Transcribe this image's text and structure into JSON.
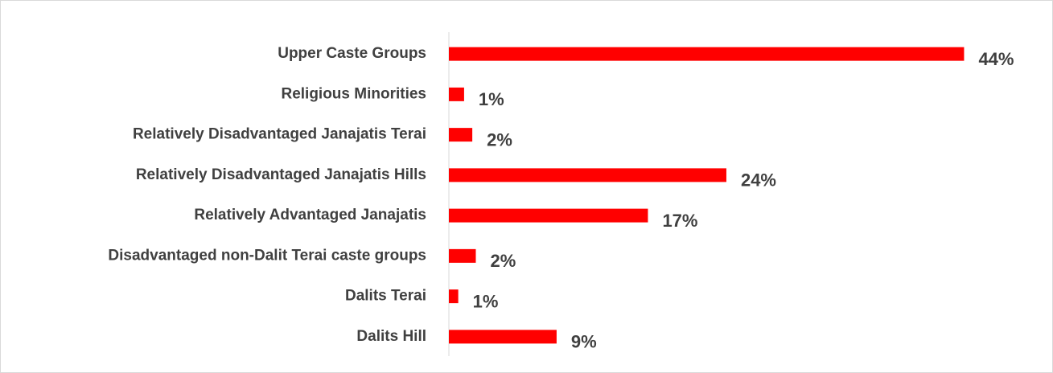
{
  "chart_data": {
    "type": "hbar",
    "categories": [
      "Upper Caste Groups",
      "Religious Minorities",
      "Relatively Disadvantaged Janajatis Terai",
      "Relatively Disadvantaged Janajatis Hills",
      "Relatively Advantaged Janajatis",
      "Disadvantaged non-Dalit Terai caste groups",
      "Dalits Terai",
      "Dalits Hill"
    ],
    "values": [
      44.0,
      1.3,
      2.0,
      23.7,
      17.0,
      2.3,
      0.8,
      9.2
    ],
    "value_labels": [
      "44%",
      "1%",
      "2%",
      "24%",
      "17%",
      "2%",
      "1%",
      "9%"
    ],
    "color": "#ff0000",
    "xlim": [
      0,
      45
    ]
  }
}
